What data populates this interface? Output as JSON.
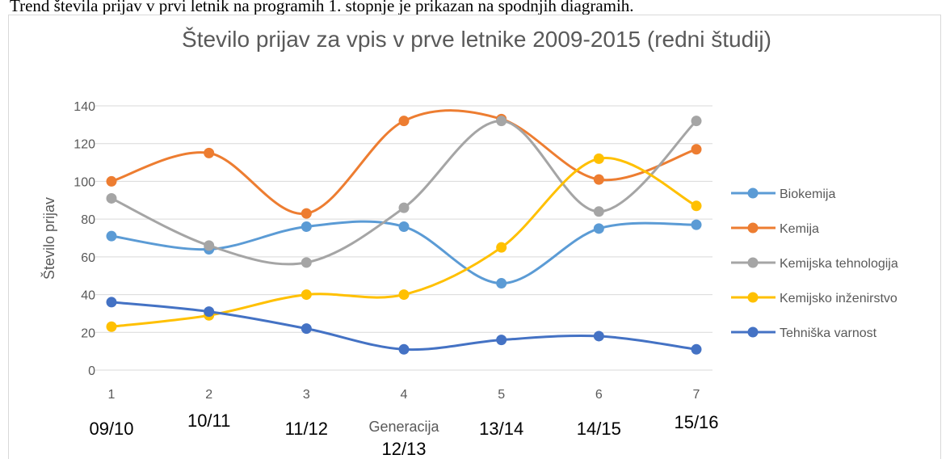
{
  "intro_text": "Trend števila prijav v prvi letnik na programih 1. stopnje je prikazan na spodnjih diagramih.",
  "chart_data": {
    "type": "line",
    "smooth": true,
    "title": "Število prijav za vpis v prve letnike 2009-2015 (redni študij)",
    "ylabel": "Število prijav",
    "xlabel": "Generacija",
    "x": [
      1,
      2,
      3,
      4,
      5,
      6,
      7
    ],
    "xlim": [
      1,
      7
    ],
    "xticks": [
      1,
      2,
      3,
      4,
      5,
      6,
      7
    ],
    "ylim": [
      0,
      140
    ],
    "yticks": [
      0,
      20,
      40,
      60,
      80,
      100,
      120,
      140
    ],
    "grid": true,
    "legend": "right",
    "generation_labels": [
      "09/10",
      "10/11",
      "11/12",
      "12/13",
      "13/14",
      "14/15",
      "15/16"
    ],
    "series": [
      {
        "name": "Biokemija",
        "color": "#5b9bd5",
        "values": [
          71,
          64,
          76,
          76,
          46,
          75,
          77
        ]
      },
      {
        "name": "Kemija",
        "color": "#ed7d31",
        "values": [
          100,
          115,
          83,
          132,
          133,
          101,
          117
        ]
      },
      {
        "name": "Kemijska tehnologija",
        "color": "#a5a5a5",
        "values": [
          91,
          66,
          57,
          86,
          132,
          84,
          132
        ]
      },
      {
        "name": "Kemijsko inženirstvo",
        "color": "#ffc000",
        "values": [
          23,
          29,
          40,
          40,
          65,
          112,
          87
        ]
      },
      {
        "name": "Tehniška varnost",
        "color": "#4472c4",
        "values": [
          36,
          31,
          22,
          11,
          16,
          18,
          11
        ]
      }
    ]
  }
}
